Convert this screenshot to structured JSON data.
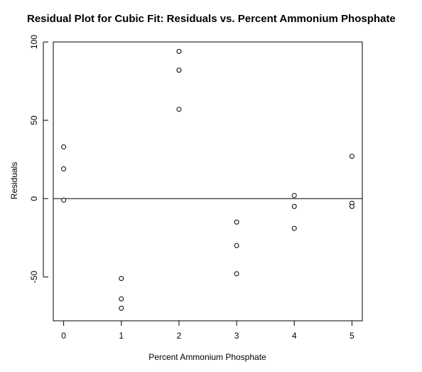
{
  "chart_data": {
    "type": "scatter",
    "title": "Residual Plot for Cubic Fit: Residuals vs. Percent Ammonium Phosphate",
    "xlabel": "Percent Ammonium Phosphate",
    "ylabel": "Residuals",
    "xlim": [
      -0.18,
      5.18
    ],
    "ylim": [
      -78,
      100
    ],
    "x_ticks": [
      0,
      1,
      2,
      3,
      4,
      5
    ],
    "y_ticks": [
      -50,
      0,
      50,
      100
    ],
    "x_tick_labels": [
      "0",
      "1",
      "2",
      "3",
      "4",
      "5"
    ],
    "y_tick_labels": [
      "-50",
      "0",
      "50",
      "100"
    ],
    "grid": false,
    "legend": "none",
    "reference_line": {
      "y": 0
    },
    "marker": "open-circle",
    "color": "#000000",
    "series": [
      {
        "x": [
          0,
          0,
          0,
          1,
          1,
          1,
          2,
          2,
          2,
          3,
          3,
          3,
          4,
          4,
          4,
          5,
          5,
          5
        ],
        "y": [
          33,
          19,
          -1,
          -51,
          -64,
          -70,
          94,
          82,
          57,
          -15,
          -30,
          -48,
          2,
          -5,
          -19,
          27,
          -3,
          -5
        ]
      }
    ]
  }
}
